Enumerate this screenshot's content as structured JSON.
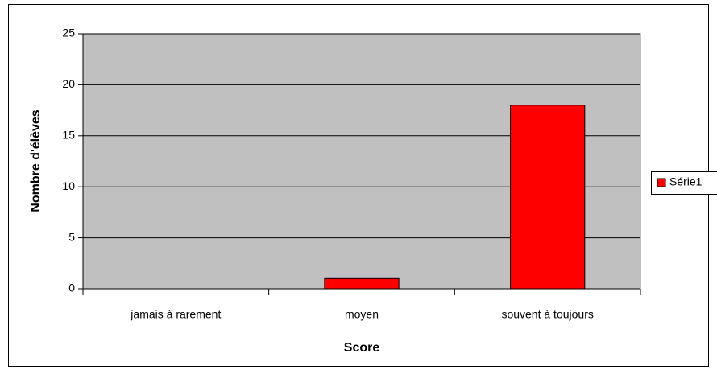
{
  "chart_data": {
    "type": "bar",
    "categories": [
      "jamais à rarement",
      "moyen",
      "souvent à toujours"
    ],
    "series": [
      {
        "name": "Série1",
        "color": "#ff0000",
        "values": [
          0,
          1,
          18
        ]
      }
    ],
    "xlabel": "Score",
    "ylabel": "Nombre d'élèves",
    "ylim": [
      0,
      25
    ],
    "yticks": [
      0,
      5,
      10,
      15,
      20,
      25
    ],
    "grid": true,
    "legend": "right"
  }
}
